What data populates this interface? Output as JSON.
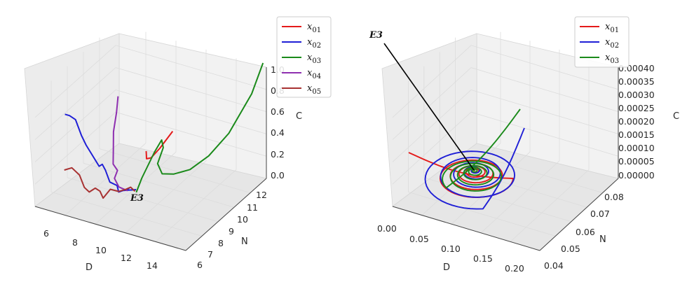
{
  "chart_data": [
    {
      "type": "line",
      "projection": "3d",
      "equilibrium_label": "E3",
      "axes": {
        "x": {
          "label": "D",
          "range": [
            5,
            15
          ],
          "ticks": [
            "6",
            "8",
            "10",
            "12",
            "14"
          ]
        },
        "y": {
          "label": "N",
          "range": [
            6,
            12
          ],
          "ticks": [
            "6",
            "7",
            "8",
            "9",
            "10",
            "11",
            "12"
          ]
        },
        "z": {
          "label": "C",
          "range": [
            0,
            1
          ],
          "ticks": [
            "0.0",
            "0.2",
            "0.4",
            "0.6",
            "0.8",
            "1.0"
          ]
        }
      },
      "legend_position": "top-right",
      "series": [
        {
          "name": "x01",
          "color": "#e41a1a",
          "points": [
            [
              9.7,
              9.0,
              0.36
            ],
            [
              9.8,
              8.9,
              0.34
            ],
            [
              9.9,
              8.8,
              0.32
            ],
            [
              10.2,
              8.8,
              0.34
            ],
            [
              10.6,
              9.0,
              0.42
            ],
            [
              11.1,
              9.4,
              0.55
            ]
          ]
        },
        {
          "name": "x02",
          "color": "#1f1fd6",
          "points": [
            [
              5.2,
              8.0,
              0.62
            ],
            [
              5.5,
              8.0,
              0.62
            ],
            [
              5.9,
              8.0,
              0.6
            ],
            [
              6.2,
              8.1,
              0.46
            ],
            [
              6.6,
              8.0,
              0.4
            ],
            [
              7.2,
              8.3,
              0.2
            ],
            [
              7.5,
              8.2,
              0.24
            ],
            [
              7.8,
              8.1,
              0.21
            ],
            [
              8.0,
              8.2,
              0.1
            ],
            [
              8.3,
              8.4,
              0.06
            ],
            [
              8.5,
              8.3,
              0.02
            ],
            [
              9.0,
              8.5,
              0.05
            ],
            [
              8.7,
              8.4,
              0.03
            ],
            [
              9.3,
              8.7,
              0.03
            ]
          ]
        },
        {
          "name": "x03",
          "color": "#1a8a1a",
          "points": [
            [
              9.4,
              8.6,
              0.02
            ],
            [
              9.5,
              8.9,
              0.12
            ],
            [
              9.8,
              9.5,
              0.3
            ],
            [
              10.1,
              9.7,
              0.4
            ],
            [
              10.3,
              9.6,
              0.35
            ],
            [
              10.1,
              9.4,
              0.22
            ],
            [
              10.4,
              9.4,
              0.14
            ],
            [
              11.0,
              9.6,
              0.14
            ],
            [
              11.8,
              9.9,
              0.18
            ],
            [
              12.6,
              10.4,
              0.28
            ],
            [
              13.4,
              11.0,
              0.45
            ],
            [
              14.2,
              11.8,
              0.75
            ],
            [
              14.6,
              12.2,
              1.0
            ]
          ]
        },
        {
          "name": "x04",
          "color": "#8e2fb0",
          "points": [
            [
              8.9,
              7.8,
              0.95
            ],
            [
              8.8,
              7.8,
              0.8
            ],
            [
              8.6,
              7.8,
              0.62
            ],
            [
              8.5,
              7.9,
              0.45
            ],
            [
              8.4,
              8.0,
              0.3
            ],
            [
              8.6,
              8.1,
              0.24
            ],
            [
              8.4,
              8.1,
              0.16
            ],
            [
              8.6,
              8.2,
              0.08
            ],
            [
              8.8,
              8.3,
              0.06
            ],
            [
              9.0,
              8.4,
              0.04
            ]
          ]
        },
        {
          "name": "x05",
          "color": "#a83232",
          "points": [
            [
              4.8,
              8.4,
              0.06
            ],
            [
              5.3,
              8.4,
              0.1
            ],
            [
              5.9,
              8.3,
              0.07
            ],
            [
              6.4,
              8.1,
              0.0
            ],
            [
              6.9,
              7.9,
              0.0
            ],
            [
              7.3,
              7.9,
              0.05
            ],
            [
              7.7,
              7.8,
              0.05
            ],
            [
              8.0,
              7.7,
              0.01
            ],
            [
              8.3,
              7.9,
              0.08
            ],
            [
              8.6,
              8.2,
              0.04
            ],
            [
              8.9,
              8.4,
              0.05
            ],
            [
              9.2,
              8.4,
              0.08
            ],
            [
              9.4,
              8.5,
              0.04
            ]
          ]
        }
      ]
    },
    {
      "type": "line",
      "projection": "3d",
      "equilibrium_label": "E3",
      "axes": {
        "x": {
          "label": "D",
          "range": [
            0,
            0.2
          ],
          "ticks": [
            "0.00",
            "0.05",
            "0.10",
            "0.15",
            "0.20"
          ]
        },
        "y": {
          "label": "N",
          "range": [
            0.035,
            0.085
          ],
          "ticks": [
            "0.04",
            "0.05",
            "0.06",
            "0.07",
            "0.08"
          ]
        },
        "z": {
          "label": "C",
          "range": [
            0,
            0.0004
          ],
          "ticks": [
            "0.00000",
            "0.00005",
            "0.00010",
            "0.00015",
            "0.00020",
            "0.00025",
            "0.00030",
            "0.00035",
            "0.00040"
          ]
        }
      },
      "legend_position": "top-right",
      "series": [
        {
          "name": "x01",
          "color": "#e41a1a",
          "description_points": "spiral from (0.02,0.065,0.00012) to E3"
        },
        {
          "name": "x02",
          "color": "#1f1fd6",
          "description_points": "spiral from (0.20,0.075,0.00026) to E3"
        },
        {
          "name": "x03",
          "color": "#1a8a1a",
          "description_points": "spiral from (0.18,0.082,0.00040) to E3"
        }
      ]
    }
  ]
}
